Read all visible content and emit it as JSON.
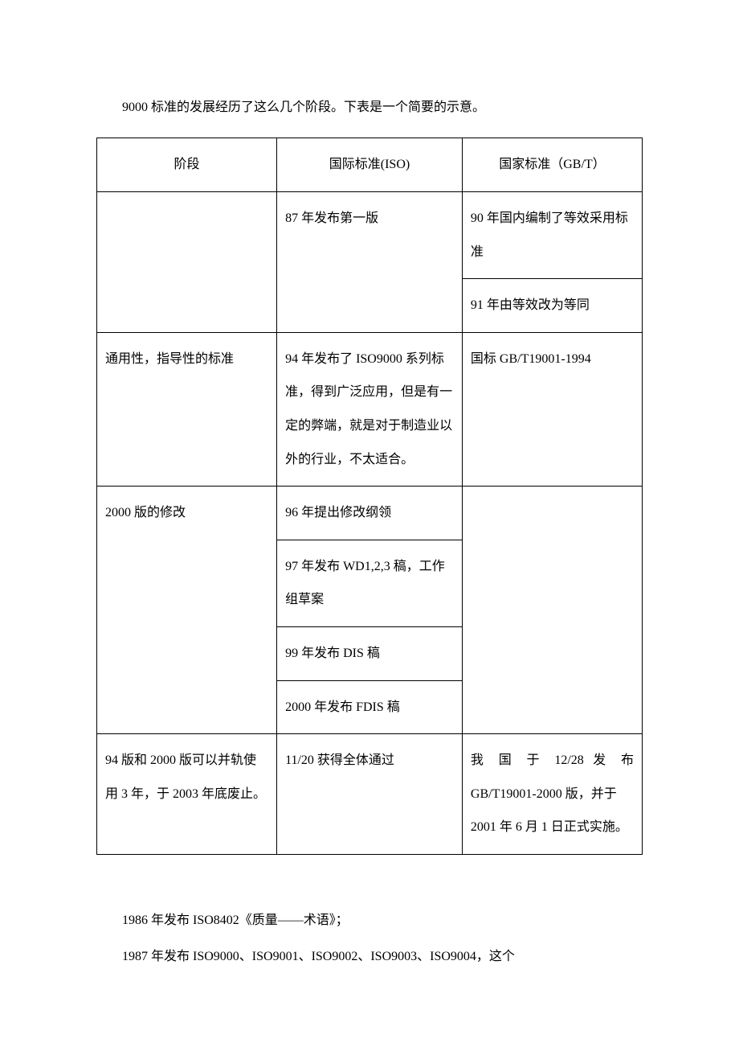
{
  "intro": "9000 标准的发展经历了这么几个阶段。下表是一个简要的示意。",
  "table": {
    "headers": {
      "col1": "阶段",
      "col2": "国际标准(ISO)",
      "col3": "国家标准（GB/T）"
    },
    "rows": {
      "r1": {
        "c1": "",
        "c2": "87 年发布第一版",
        "c3": "90 年国内编制了等效采用标准"
      },
      "r1b": {
        "c3": "91 年由等效改为等同"
      },
      "r2": {
        "c1": "通用性，指导性的标准",
        "c2": "94 年发布了 ISO9000 系列标准，得到广泛应用，但是有一定的弊端，就是对于制造业以外的行业，不太适合。",
        "c3": "国标 GB/T19001-1994"
      },
      "r3": {
        "c1": "2000 版的修改",
        "c2a": "96 年提出修改纲领",
        "c2b": "97 年发布 WD1,2,3 稿，工作组草案",
        "c2c": "99 年发布 DIS 稿",
        "c2d": "2000 年发布 FDIS 稿",
        "c3": ""
      },
      "r4": {
        "c1": "94 版和 2000 版可以并轨使用 3 年，于 2003 年底废止。",
        "c2": "11/20 获得全体通过",
        "c3a": "我",
        "c3b": "国",
        "c3c": "于",
        "c3d": "12/28",
        "c3e": "发",
        "c3f": "布",
        "c3rest": "GB/T19001-2000 版，并于 2001 年 6 月 1 日正式实施。"
      }
    }
  },
  "body": {
    "p1": "1986 年发布 ISO8402《质量——术语》；",
    "p2": "1987 年发布 ISO9000、ISO9001、ISO9002、ISO9003、ISO9004，这个"
  }
}
